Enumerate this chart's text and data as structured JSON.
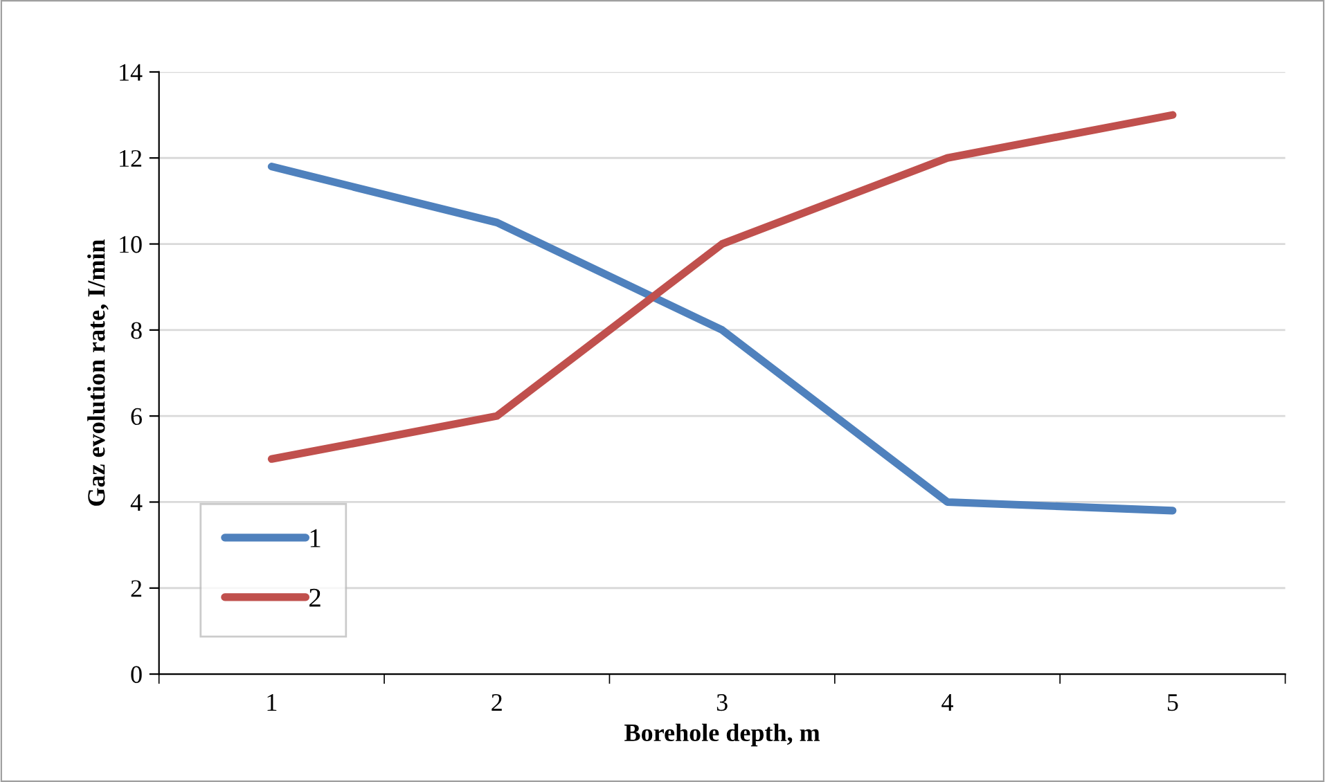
{
  "chart_data": {
    "type": "line",
    "xlabel": "Borehole depth, m",
    "ylabel": "Gaz evolution rate, I/min",
    "categories": [
      "1",
      "2",
      "3",
      "4",
      "5"
    ],
    "series": [
      {
        "name": "1",
        "color": "#4f81bd",
        "values": [
          11.8,
          10.5,
          8,
          4,
          3.8
        ]
      },
      {
        "name": "2",
        "color": "#c0504d",
        "values": [
          5,
          6,
          10,
          12,
          13
        ]
      }
    ],
    "ylim": [
      0,
      14
    ],
    "yticks": [
      0,
      2,
      4,
      6,
      8,
      10,
      12,
      14
    ],
    "grid": "y",
    "legend": "bottom left",
    "marker": "none",
    "line_style": "solid"
  }
}
